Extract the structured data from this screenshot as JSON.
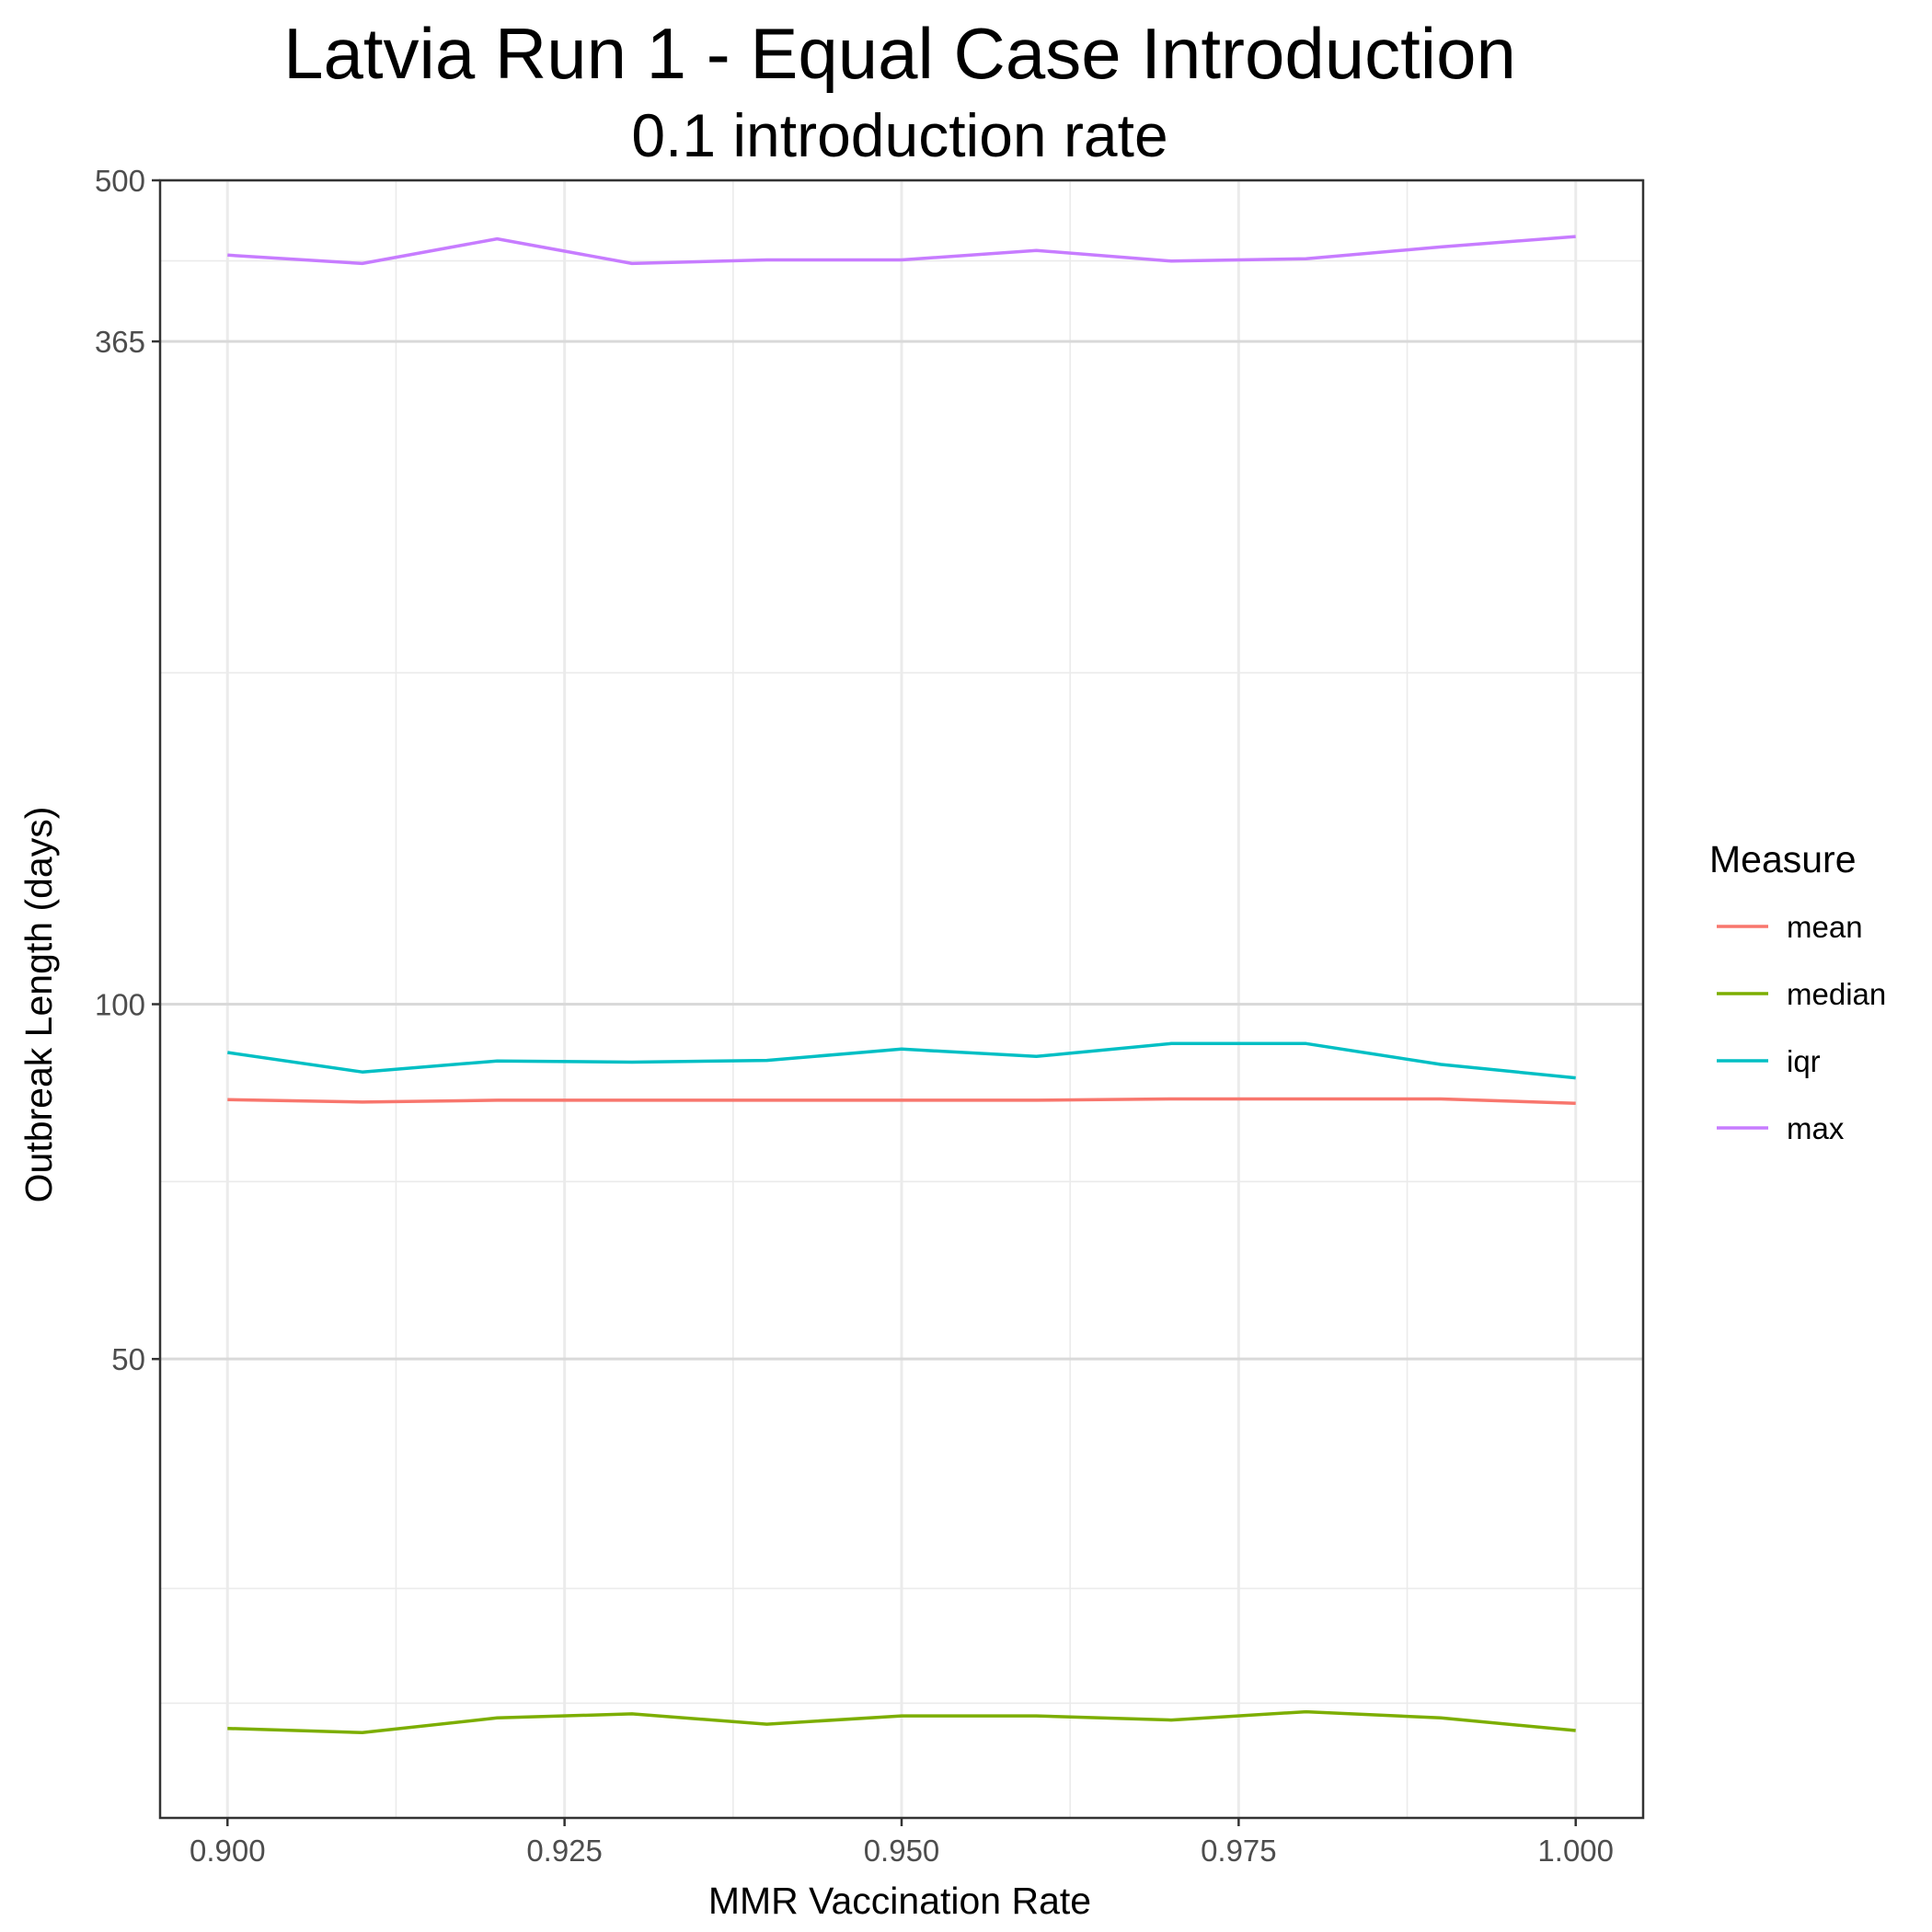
{
  "chart_data": {
    "type": "line",
    "title": "Latvia Run 1 - Equal Case Introduction",
    "subtitle": "0.1 introduction rate",
    "xlabel": "MMR Vaccination Rate",
    "ylabel": "Outbreak Length (days)",
    "y_scale": "log",
    "xlim": [
      0.895,
      1.005
    ],
    "ylim": [
      20.4,
      500
    ],
    "x_ticks": [
      0.9,
      0.925,
      0.95,
      0.975,
      1.0
    ],
    "x_tick_labels": [
      "0.900",
      "0.925",
      "0.950",
      "0.975",
      "1.000"
    ],
    "y_ticks": [
      50,
      100,
      365,
      500
    ],
    "y_tick_labels": [
      "50",
      "100",
      "365",
      "500"
    ],
    "grid": true,
    "legend": {
      "title": "Measure",
      "position": "right"
    },
    "x": [
      0.9,
      0.91,
      0.92,
      0.93,
      0.94,
      0.95,
      0.96,
      0.97,
      0.98,
      0.99,
      1.0
    ],
    "series": [
      {
        "name": "mean",
        "color": "#F8766D",
        "values": [
          83.0,
          82.6,
          82.9,
          82.9,
          82.9,
          82.9,
          82.9,
          83.1,
          83.1,
          83.1,
          82.4
        ]
      },
      {
        "name": "median",
        "color": "#7CAE00",
        "values": [
          24.3,
          24.1,
          24.8,
          25.0,
          24.5,
          24.9,
          24.9,
          24.7,
          25.1,
          24.8,
          24.2
        ]
      },
      {
        "name": "iqr",
        "color": "#00BFC4",
        "values": [
          91.0,
          87.6,
          89.5,
          89.3,
          89.6,
          91.6,
          90.3,
          92.6,
          92.6,
          88.9,
          86.6
        ]
      },
      {
        "name": "max",
        "color": "#C77CFF",
        "values": [
          432,
          425,
          446,
          425,
          428,
          428,
          436,
          427,
          429,
          439,
          448
        ]
      }
    ]
  }
}
